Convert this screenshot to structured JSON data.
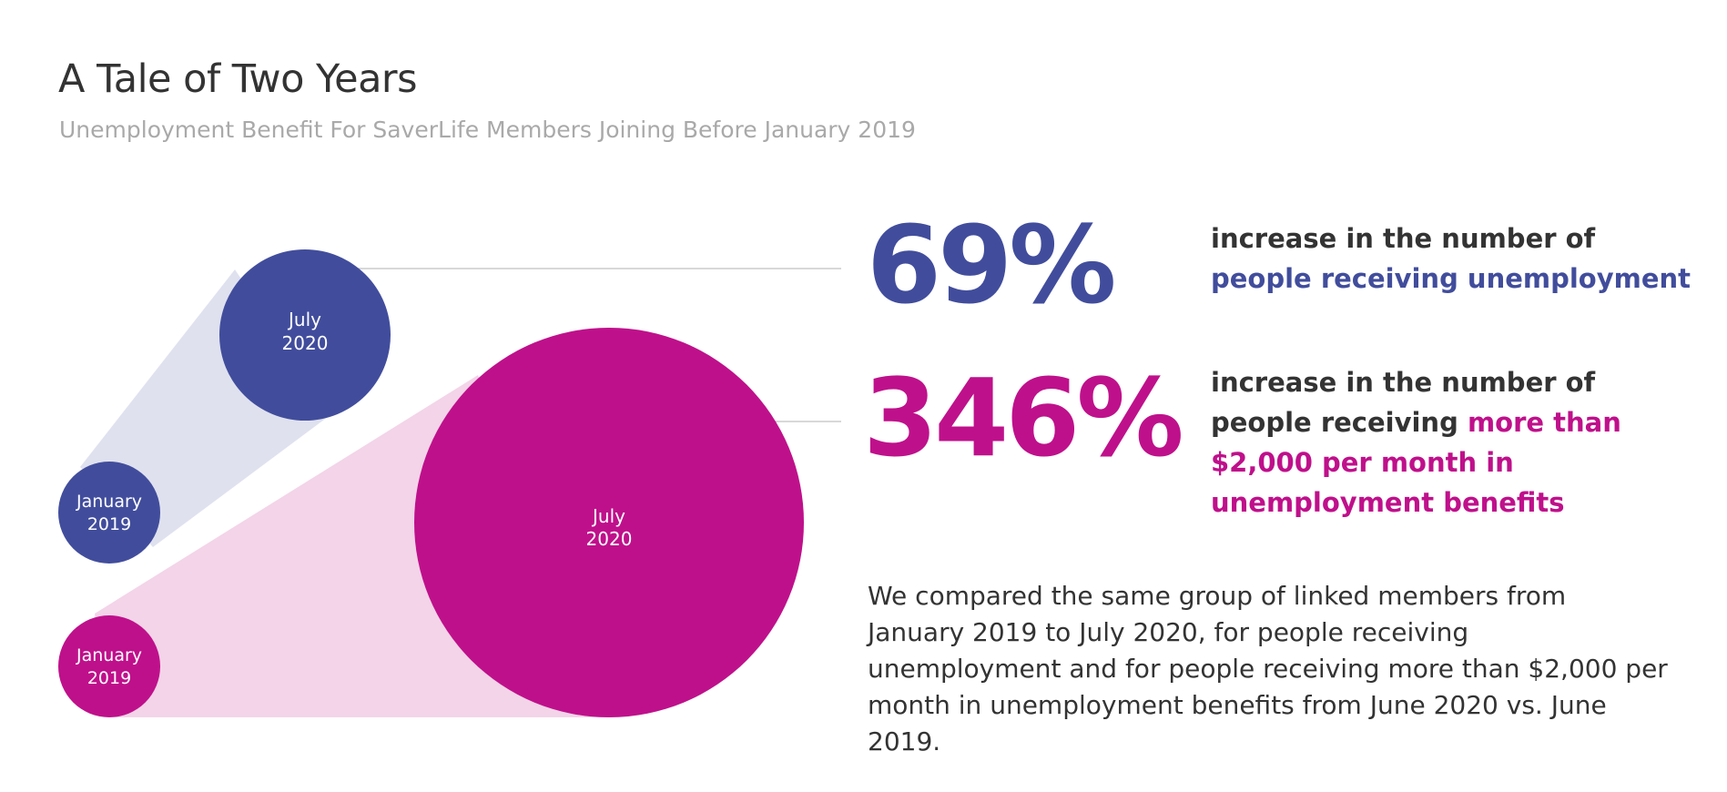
{
  "title": "A Tale of Two Years",
  "subtitle": "Unemployment Benefit For SaverLife Members Joining Before January 2019",
  "colors": {
    "blue": "#414d9c",
    "magenta": "#bf108b",
    "blue_cone": "#dfe1ef",
    "magenta_cone": "#f3d4e8",
    "connector": "#cccccc"
  },
  "chart_data": {
    "type": "bubble",
    "title": "A Tale of Two Years",
    "subtitle": "Unemployment Benefit For SaverLife Members Joining Before January 2019",
    "groups": [
      {
        "metric": "people receiving unemployment",
        "increase_pct": 69,
        "color": "#414d9c",
        "points": [
          {
            "label": "January 2019",
            "relative_size": 1.0
          },
          {
            "label": "July 2020",
            "relative_size": 1.69
          }
        ]
      },
      {
        "metric": "people receiving more than $2,000 per month in unemployment benefits",
        "increase_pct": 346,
        "color": "#bf108b",
        "points": [
          {
            "label": "January 2019",
            "relative_size": 1.0
          },
          {
            "label": "July 2020",
            "relative_size": 4.46
          }
        ]
      }
    ]
  },
  "bubble_labels": {
    "blue_small": [
      "January",
      "2019"
    ],
    "blue_big": [
      "July",
      "2020"
    ],
    "magenta_small": [
      "January",
      "2019"
    ],
    "magenta_big": [
      "July",
      "2020"
    ]
  },
  "stats": [
    {
      "value": "69%",
      "text_plain": "increase in the number of ",
      "text_highlight": "people receiving unemployment"
    },
    {
      "value": "346%",
      "text_plain": "increase in the number of people receiving ",
      "text_highlight": "more than $2,000 per month in unemployment benefits"
    }
  ],
  "note": "We compared the same group of linked members from January 2019 to July 2020, for people receiving unemployment and for people receiving more than $2,000 per month in unemployment benefits from June 2020 vs. June 2019."
}
